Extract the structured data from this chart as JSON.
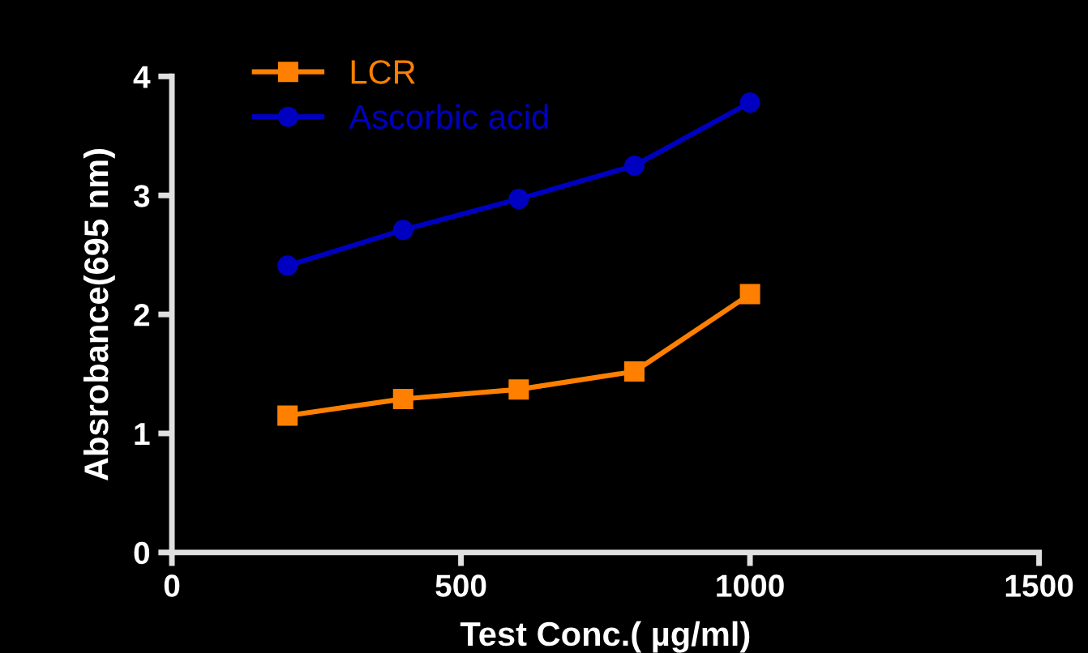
{
  "chart_data": {
    "type": "line",
    "xlabel": "Test Conc.( µg/ml)",
    "ylabel": "Absrobance(695 nm)",
    "x": [
      200,
      400,
      600,
      800,
      1000
    ],
    "series": [
      {
        "name": "LCR",
        "color": "#ff8000",
        "marker": "square",
        "values": [
          1.15,
          1.29,
          1.37,
          1.52,
          2.17
        ]
      },
      {
        "name": "Ascorbic acid",
        "color": "#0000c0",
        "marker": "circle",
        "values": [
          2.41,
          2.71,
          2.97,
          3.25,
          3.78
        ]
      }
    ],
    "xlim": [
      0,
      1500
    ],
    "xticks": [
      0,
      500,
      1000,
      1500
    ],
    "ylim": [
      0,
      4
    ],
    "yticks": [
      0,
      1,
      2,
      3,
      4
    ],
    "grid": false,
    "legend": "top left",
    "line_style": "solid"
  }
}
